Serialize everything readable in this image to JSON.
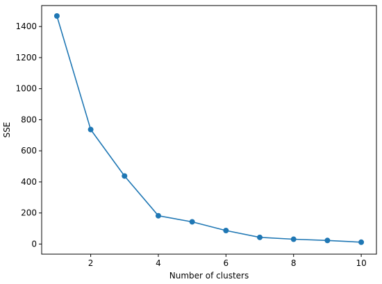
{
  "chart_data": {
    "type": "line",
    "xlabel": "Number of clusters",
    "ylabel": "SSE",
    "xlim": [
      0.55,
      10.45
    ],
    "ylim": [
      -65,
      1535
    ],
    "x_ticks": [
      2,
      4,
      6,
      8,
      10
    ],
    "y_ticks": [
      0,
      200,
      400,
      600,
      800,
      1000,
      1200,
      1400
    ],
    "grid": false,
    "series": [
      {
        "color": "#1f77b4",
        "marker": "circle",
        "x": [
          1,
          2,
          3,
          4,
          5,
          6,
          7,
          8,
          9,
          10
        ],
        "y": [
          1468,
          737,
          438,
          182,
          143,
          87,
          43,
          31,
          23,
          12
        ]
      }
    ]
  }
}
